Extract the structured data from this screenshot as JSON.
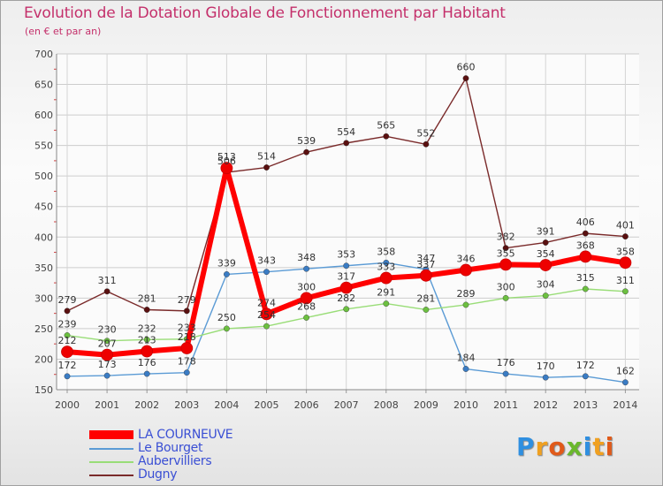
{
  "title": "Evolution de la Dotation Globale de Fonctionnement par Habitant",
  "subtitle": "(en € et par an)",
  "logo": {
    "text": "Proxiti",
    "letters": [
      {
        "ch": "P",
        "color": "#2f8fe0"
      },
      {
        "ch": "r",
        "color": "#f0a020"
      },
      {
        "ch": "o",
        "color": "#e05a1a"
      },
      {
        "ch": "x",
        "color": "#6ab82c"
      },
      {
        "ch": "i",
        "color": "#2f8fe0"
      },
      {
        "ch": "t",
        "color": "#f0a020"
      },
      {
        "ch": "i",
        "color": "#e05a1a"
      }
    ]
  },
  "chart_data": {
    "type": "line",
    "title": "Evolution de la Dotation Globale de Fonctionnement par Habitant",
    "subtitle": "(en € et par an)",
    "xlabel": "",
    "ylabel": "",
    "categories": [
      "2000",
      "2001",
      "2002",
      "2003",
      "2004",
      "2005",
      "2006",
      "2007",
      "2008",
      "2009",
      "2010",
      "2011",
      "2012",
      "2013",
      "2014"
    ],
    "ylim": [
      150,
      700
    ],
    "yticks": [
      150,
      200,
      250,
      300,
      350,
      400,
      450,
      500,
      550,
      600,
      650,
      700
    ],
    "grid": true,
    "legend_position": "bottom-left",
    "series": [
      {
        "name": "Dugny",
        "color": "#7a2a2a",
        "marker": "#5a1010",
        "values": [
          279,
          311,
          281,
          279,
          506,
          514,
          539,
          554,
          565,
          552,
          660,
          382,
          391,
          406,
          401
        ]
      },
      {
        "name": "Le Bourget",
        "color": "#5b9bd5",
        "marker": "#3a7cc4",
        "values": [
          172,
          173,
          176,
          178,
          339,
          343,
          348,
          353,
          358,
          347,
          184,
          176,
          170,
          172,
          162
        ]
      },
      {
        "name": "Aubervilliers",
        "color": "#99dd77",
        "marker": "#6cc040",
        "values": [
          239,
          230,
          232,
          233,
          250,
          254,
          268,
          282,
          291,
          281,
          289,
          300,
          304,
          315,
          311
        ]
      },
      {
        "name": "LA COURNEUVE",
        "color": "#ff0000",
        "marker": "#ee0000",
        "values": [
          212,
          207,
          213,
          218,
          513,
          274,
          300,
          317,
          333,
          337,
          346,
          355,
          354,
          368,
          358
        ]
      }
    ],
    "legend_order": [
      "LA COURNEUVE",
      "Le Bourget",
      "Aubervilliers",
      "Dugny"
    ]
  }
}
